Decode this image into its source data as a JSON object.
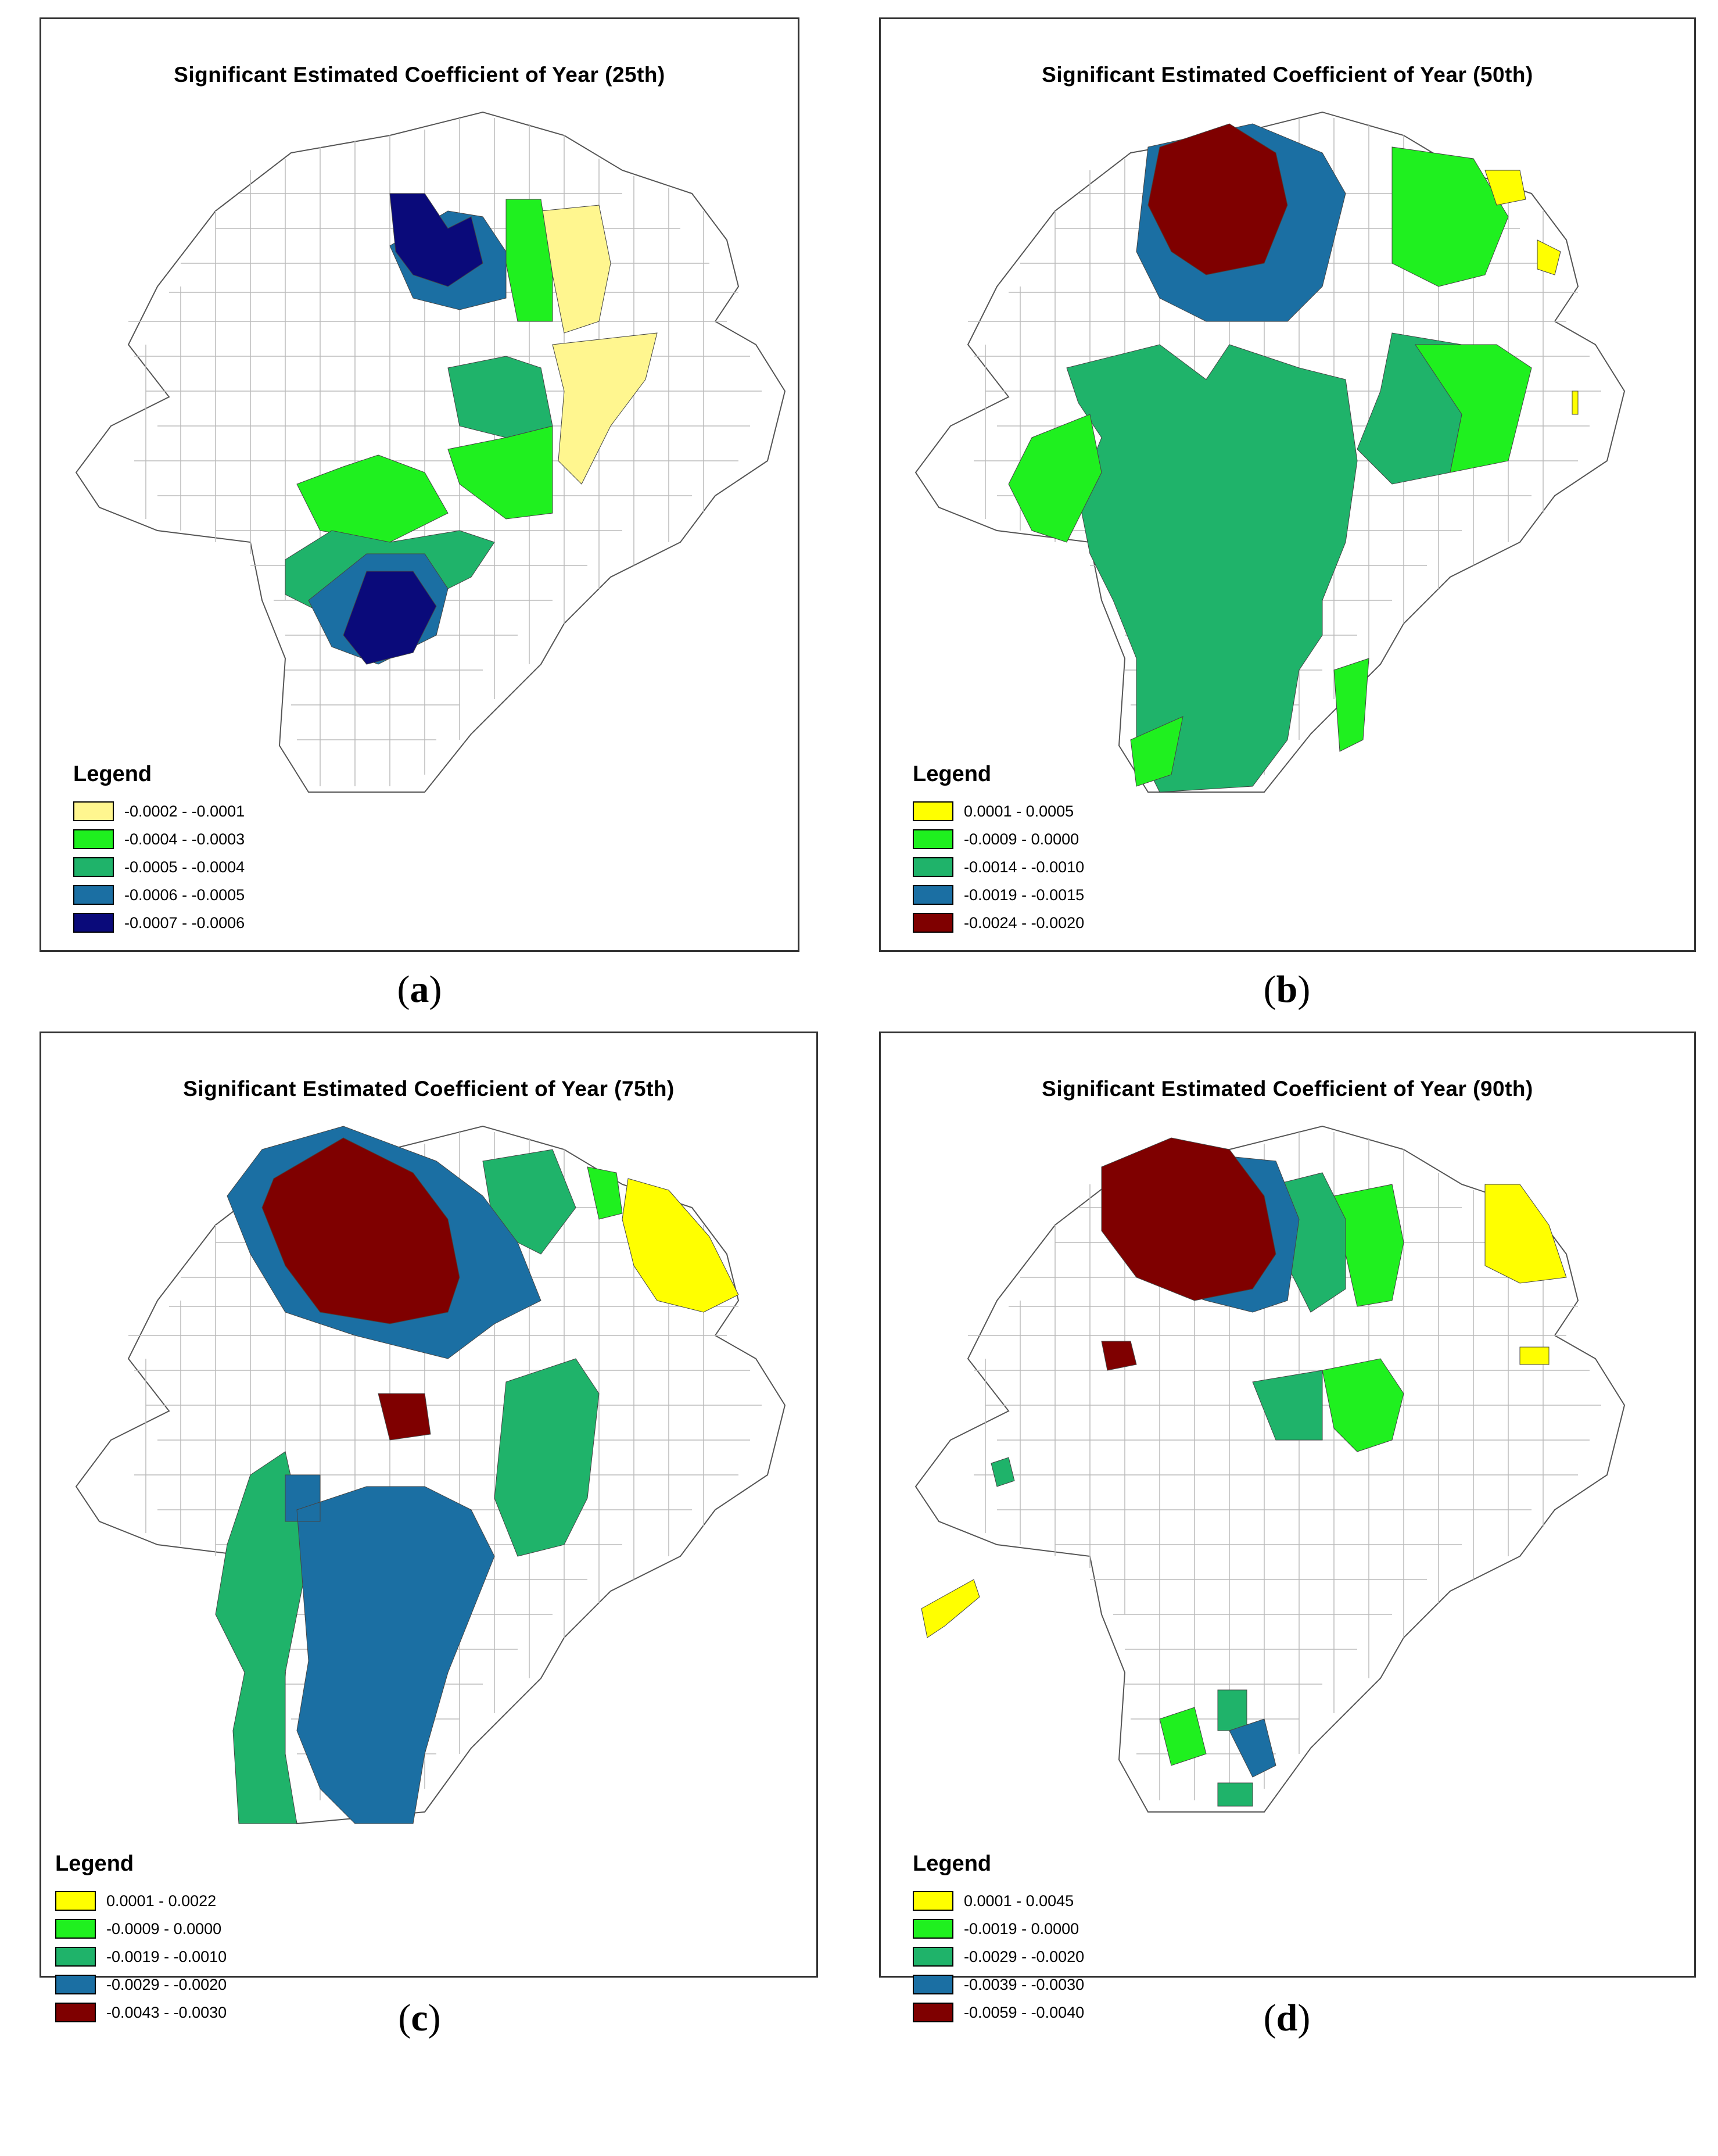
{
  "panels": [
    {
      "id": "a",
      "title": "Significant Estimated Coefficient of Year (25th)",
      "caption_letter": "a",
      "legend_title": "Legend",
      "legend": [
        {
          "label": "-0.0002 - -0.0001",
          "color": "#fff68f"
        },
        {
          "label": "-0.0004 - -0.0003",
          "color": "#1ff01f"
        },
        {
          "label": "-0.0005 - -0.0004",
          "color": "#1fb36a"
        },
        {
          "label": "-0.0006 - -0.0005",
          "color": "#1b6fa3"
        },
        {
          "label": "-0.0007 - -0.0006",
          "color": "#0a0a7a"
        }
      ]
    },
    {
      "id": "b",
      "title": "Significant Estimated Coefficient of Year (50th)",
      "caption_letter": "b",
      "legend_title": "Legend",
      "legend": [
        {
          "label": "0.0001 - 0.0005",
          "color": "#ffff00"
        },
        {
          "label": "-0.0009 - 0.0000",
          "color": "#1ff01f"
        },
        {
          "label": "-0.0014 - -0.0010",
          "color": "#1fb36a"
        },
        {
          "label": "-0.0019 - -0.0015",
          "color": "#1b6fa3"
        },
        {
          "label": "-0.0024 - -0.0020",
          "color": "#7f0000"
        }
      ]
    },
    {
      "id": "c",
      "title": "Significant Estimated Coefficient of Year (75th)",
      "caption_letter": "c",
      "legend_title": "Legend",
      "legend": [
        {
          "label": "0.0001 - 0.0022",
          "color": "#ffff00"
        },
        {
          "label": "-0.0009 - 0.0000",
          "color": "#1ff01f"
        },
        {
          "label": "-0.0019 - -0.0010",
          "color": "#1fb36a"
        },
        {
          "label": "-0.0029 - -0.0020",
          "color": "#1b6fa3"
        },
        {
          "label": "-0.0043 - -0.0030",
          "color": "#7f0000"
        }
      ]
    },
    {
      "id": "d",
      "title": "Significant Estimated Coefficient of Year (90th)",
      "caption_letter": "d",
      "legend_title": "Legend",
      "legend": [
        {
          "label": "0.0001 - 0.0045",
          "color": "#ffff00"
        },
        {
          "label": "-0.0019 - 0.0000",
          "color": "#1ff01f"
        },
        {
          "label": "-0.0029 - -0.0020",
          "color": "#1fb36a"
        },
        {
          "label": "-0.0039 - -0.0030",
          "color": "#1b6fa3"
        },
        {
          "label": "-0.0059 - -0.0040",
          "color": "#7f0000"
        }
      ]
    }
  ]
}
